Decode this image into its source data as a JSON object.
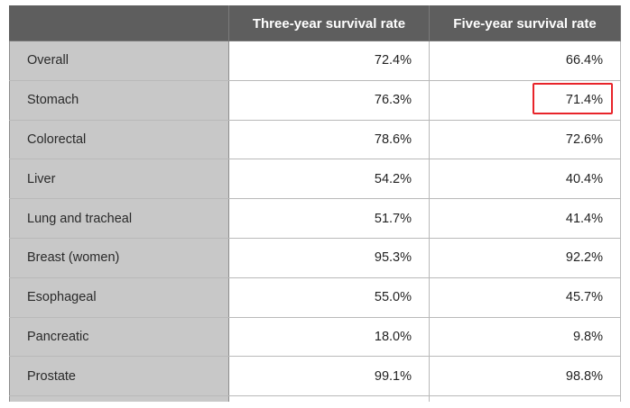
{
  "chart_data": {
    "type": "table",
    "columns": [
      "",
      "Three-year survival rate",
      "Five-year survival rate"
    ],
    "rows": [
      {
        "label": "Overall",
        "three_year": "72.4%",
        "five_year": "66.4%",
        "highlighted": false
      },
      {
        "label": "Stomach",
        "three_year": "76.3%",
        "five_year": "71.4%",
        "highlighted": true
      },
      {
        "label": "Colorectal",
        "three_year": "78.6%",
        "five_year": "72.6%",
        "highlighted": false
      },
      {
        "label": "Liver",
        "three_year": "54.2%",
        "five_year": "40.4%",
        "highlighted": false
      },
      {
        "label": "Lung and tracheal",
        "three_year": "51.7%",
        "five_year": "41.4%",
        "highlighted": false
      },
      {
        "label": "Breast (women)",
        "three_year": "95.3%",
        "five_year": "92.2%",
        "highlighted": false
      },
      {
        "label": "Esophageal",
        "three_year": "55.0%",
        "five_year": "45.7%",
        "highlighted": false
      },
      {
        "label": "Pancreatic",
        "three_year": "18.0%",
        "five_year": "9.8%",
        "highlighted": false
      },
      {
        "label": "Prostate",
        "three_year": "99.1%",
        "five_year": "98.8%",
        "highlighted": false
      }
    ],
    "colors": {
      "header_bg": "#5e5e5e",
      "label_bg": "#c8c8c8",
      "highlight": "#e8242a"
    }
  }
}
